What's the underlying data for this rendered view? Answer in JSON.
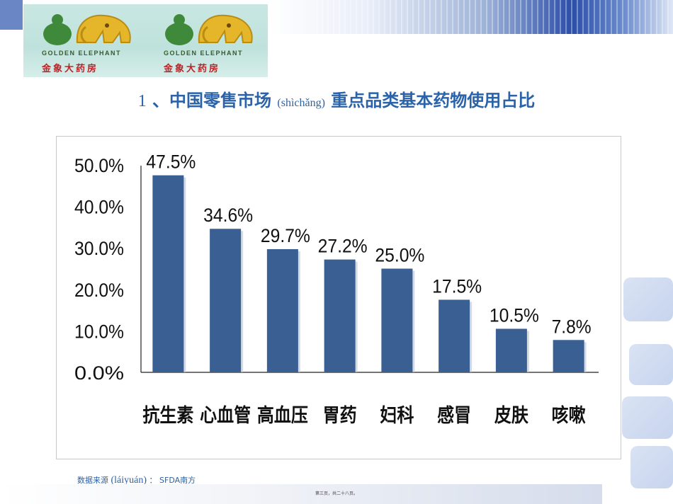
{
  "logo": {
    "english": "GOLDEN ELEPHANT",
    "chinese": "金象大药房"
  },
  "title": {
    "number": "1",
    "separator": "、",
    "main": "中国零售市场",
    "pinyin": "(shìchǎng)",
    "rest": "重点品类基本药物使用占比"
  },
  "chart_data": {
    "type": "bar",
    "categories": [
      "抗生素",
      "心血管",
      "高血压",
      "胃药",
      "妇科",
      "感冒",
      "皮肤",
      "咳嗽"
    ],
    "values": [
      47.5,
      34.6,
      29.7,
      27.2,
      25.0,
      17.5,
      10.5,
      7.8
    ],
    "data_labels": [
      "47.5%",
      "34.6%",
      "29.7%",
      "27.2%",
      "25.0%",
      "17.5%",
      "10.5%",
      "7.8%"
    ],
    "yticks": [
      "0.0%",
      "10.0%",
      "20.0%",
      "30.0%",
      "40.0%",
      "50.0%"
    ],
    "ylim": [
      0,
      50
    ],
    "grid": false,
    "bar_color": "#3a5f93",
    "title": "",
    "xlabel": "",
    "ylabel": ""
  },
  "source": {
    "label": "数据来源",
    "pinyin": "(láiyuán)",
    "colon": "：",
    "org1": "SFDA",
    "org2": "南方"
  },
  "footer": {
    "page_note": "第三页，共二十八页。"
  },
  "colors": {
    "title": "#2a63a8",
    "bar": "#3a5f93"
  }
}
